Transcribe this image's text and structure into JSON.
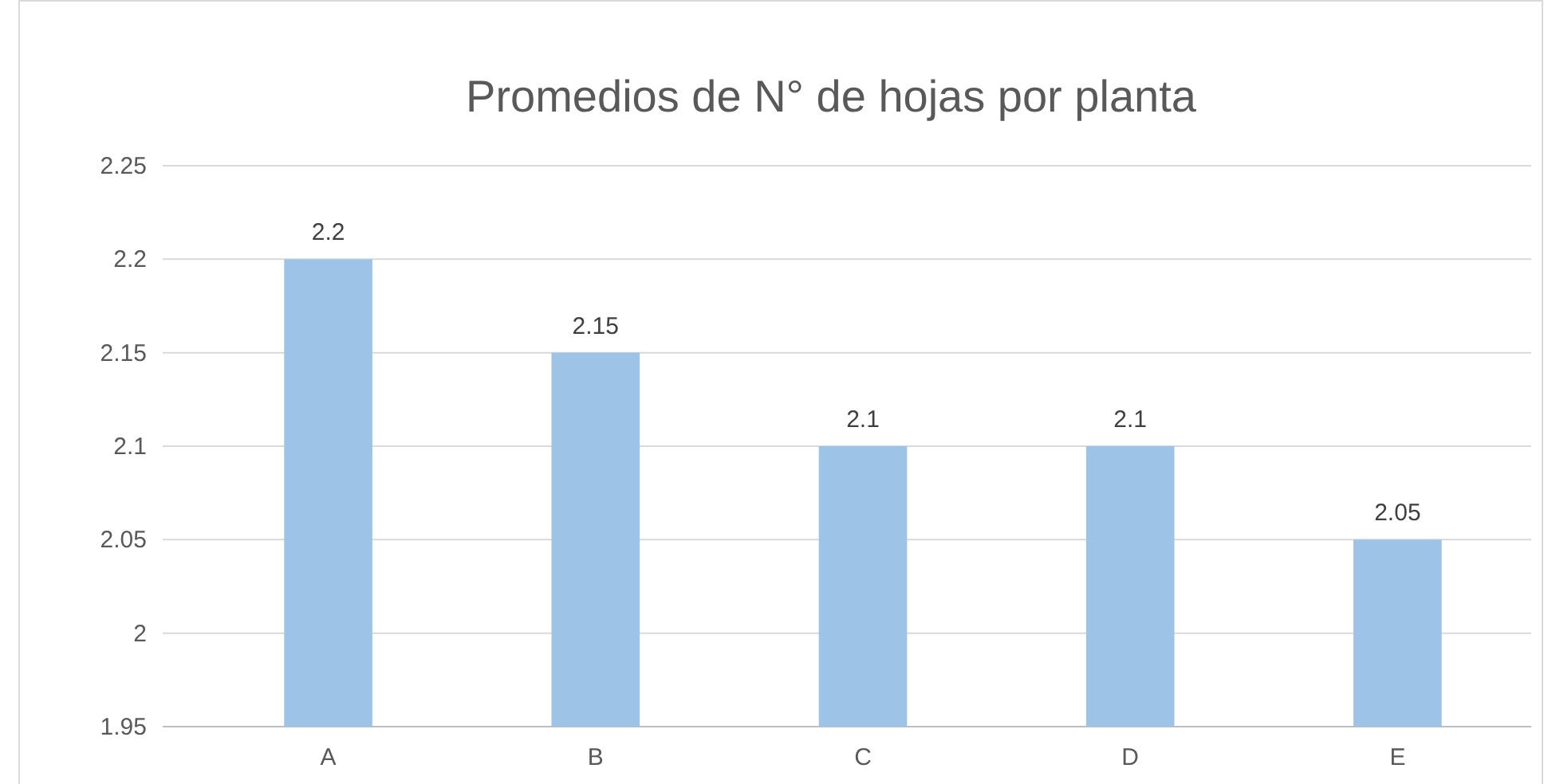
{
  "chart_data": {
    "type": "bar",
    "title": "Promedios de N° de hojas por planta",
    "categories": [
      "A",
      "B",
      "C",
      "D",
      "E"
    ],
    "values": [
      2.2,
      2.15,
      2.1,
      2.1,
      2.05
    ],
    "color": "#9dc3e6",
    "ylim": [
      1.95,
      2.25
    ],
    "yticks": [
      1.95,
      2,
      2.05,
      2.1,
      2.15,
      2.2,
      2.25
    ],
    "grid": "y",
    "data_labels": true
  }
}
